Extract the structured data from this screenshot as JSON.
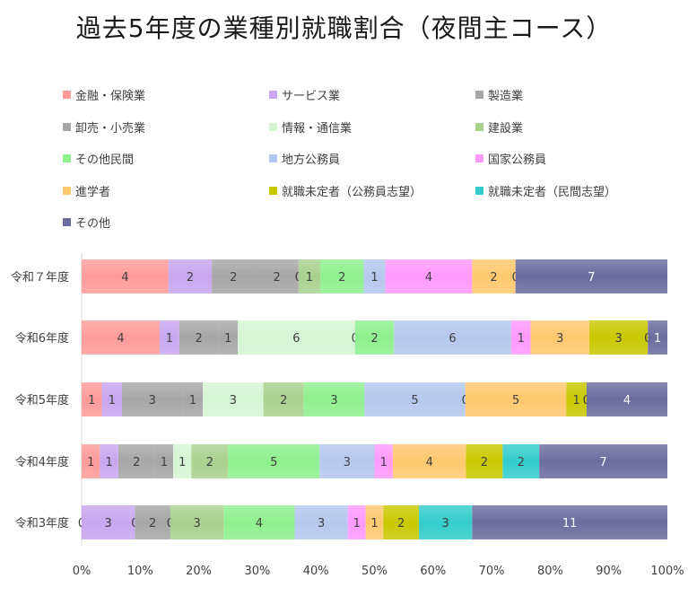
{
  "chart_data": {
    "type": "bar",
    "orientation": "horizontal",
    "stacking": "percent",
    "title": "過去5年度の業種別就職割合（夜間主コース）",
    "categories": [
      "令和７年度",
      "令和6年度",
      "令和5年度",
      "令和4年度",
      "令和3年度"
    ],
    "series": [
      {
        "name": "金融・保険業",
        "color": "#ff9a9a",
        "values": [
          4,
          4,
          1,
          1,
          0
        ]
      },
      {
        "name": "サービス業",
        "color": "#c8a6f0",
        "values": [
          2,
          1,
          1,
          1,
          3
        ]
      },
      {
        "name": "製造業",
        "color": "#a6a6a6",
        "values": [
          2,
          2,
          3,
          2,
          0
        ]
      },
      {
        "name": "卸売・小売業",
        "color": "#a6a6a6",
        "values": [
          2,
          1,
          1,
          1,
          2
        ]
      },
      {
        "name": "情報・通信業",
        "color": "#d5f5d3",
        "values": [
          0,
          6,
          3,
          1,
          0
        ]
      },
      {
        "name": "建設業",
        "color": "#a9d18e",
        "values": [
          1,
          0,
          2,
          2,
          3
        ]
      },
      {
        "name": "その他民間",
        "color": "#8ef08e",
        "values": [
          2,
          2,
          3,
          5,
          4
        ]
      },
      {
        "name": "地方公務員",
        "color": "#b4c7ee",
        "values": [
          1,
          6,
          5,
          3,
          3
        ]
      },
      {
        "name": "国家公務員",
        "color": "#ff99ff",
        "values": [
          4,
          1,
          0,
          1,
          1
        ]
      },
      {
        "name": "進学者",
        "color": "#ffc86e",
        "values": [
          2,
          3,
          5,
          4,
          1
        ]
      },
      {
        "name": "就職未定者（公務員志望）",
        "color": "#c8c800",
        "values": [
          0,
          3,
          1,
          2,
          2
        ]
      },
      {
        "name": "就職未定者（民間志望）",
        "color": "#33cccc",
        "values": [
          null,
          0,
          0,
          2,
          3
        ]
      },
      {
        "name": "その他",
        "color": "#6b6b9f",
        "values": [
          7,
          1,
          4,
          7,
          11
        ]
      }
    ],
    "x_axis": {
      "ticks": [
        "0%",
        "10%",
        "20%",
        "30%",
        "40%",
        "50%",
        "60%",
        "70%",
        "80%",
        "90%",
        "100%"
      ],
      "range": [
        0,
        100
      ]
    },
    "legend_position": "top"
  }
}
